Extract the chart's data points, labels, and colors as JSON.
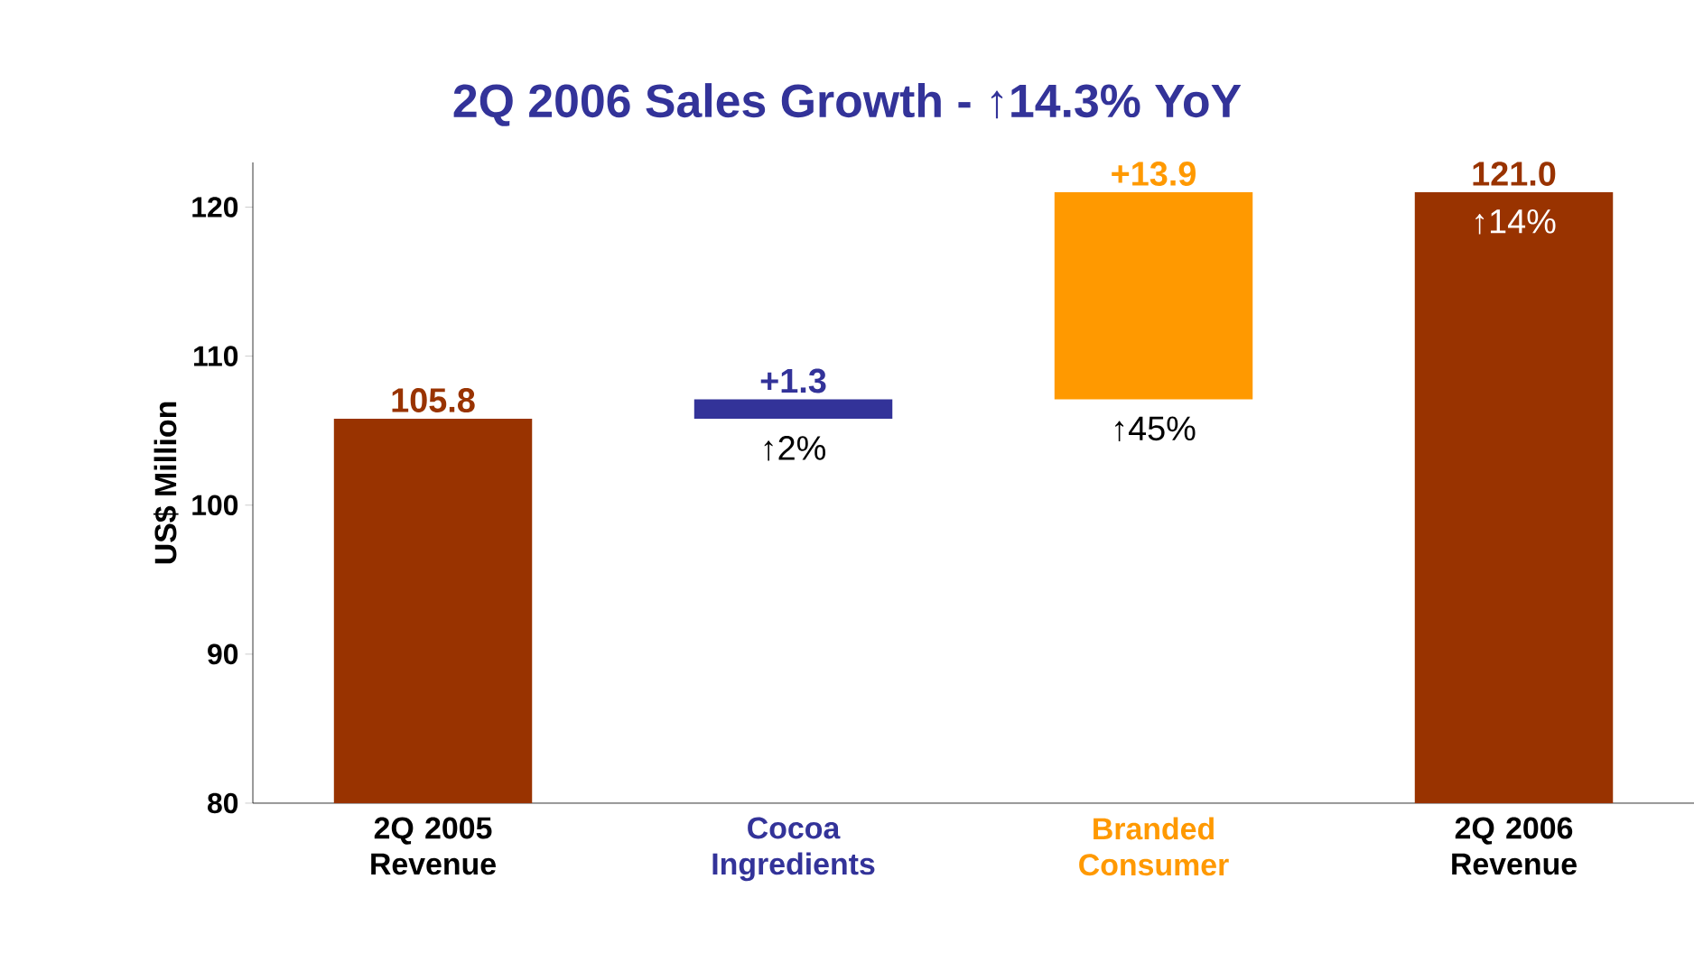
{
  "chart_data": {
    "type": "bar",
    "title": "2Q 2006 Sales Growth - ↑14.3% YoY",
    "ylabel": "US$ Million",
    "categories": [
      "2Q 2005 Revenue",
      "Cocoa Ingredients",
      "Branded Consumer",
      "2Q 2006 Revenue"
    ],
    "values": [
      105.8,
      1.3,
      13.9,
      121.0
    ],
    "base": [
      null,
      105.8,
      107.1,
      null
    ],
    "colors": [
      "#993300",
      "#333399",
      "#ff9900",
      "#993300"
    ],
    "value_labels": [
      "105.8",
      "+1.3",
      "+13.9",
      "121.0"
    ],
    "annotations": [
      "↑2%",
      "↑45%",
      "↑14%"
    ],
    "ylim": [
      80,
      123
    ],
    "yticks": [
      80,
      90,
      100,
      110,
      120
    ],
    "grid": false
  }
}
